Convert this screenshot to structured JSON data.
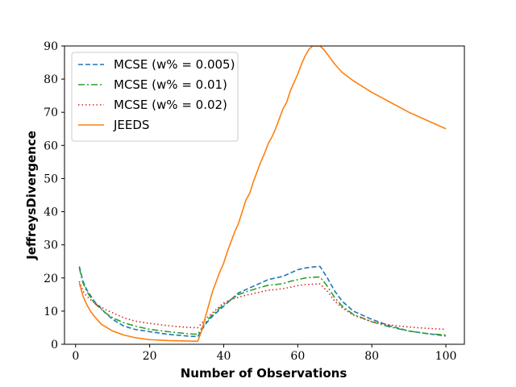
{
  "chart_data": {
    "type": "line",
    "title": "",
    "xlabel": "Number of Observations",
    "ylabel": "JeffreysDivergence",
    "xlim": [
      -3,
      105
    ],
    "ylim": [
      0,
      90
    ],
    "xticks": [
      0,
      20,
      40,
      60,
      80,
      100
    ],
    "yticks": [
      0,
      10,
      20,
      30,
      40,
      50,
      60,
      70,
      80,
      90
    ],
    "grid": false,
    "legend_position": "top-left",
    "series": [
      {
        "name": "MCSE (w% = 0.005)",
        "color": "#1f77b4",
        "style": "dashed",
        "x": [
          1,
          2,
          3,
          5,
          8,
          10,
          13,
          16,
          20,
          25,
          30,
          33,
          35,
          37,
          40,
          42,
          44,
          46,
          48,
          50,
          52,
          54,
          56,
          58,
          60,
          62,
          64,
          66,
          68,
          70,
          72,
          75,
          80,
          85,
          90,
          95,
          100
        ],
        "y": [
          23.5,
          19,
          16.5,
          13,
          9.5,
          7.5,
          5.5,
          4.5,
          3.8,
          3.0,
          2.5,
          2.3,
          6,
          8.5,
          11.5,
          13.5,
          15.5,
          16.5,
          17.5,
          18.5,
          19.5,
          20,
          20.5,
          21.5,
          22.5,
          23,
          23.3,
          23.5,
          20,
          16,
          13,
          10,
          7.5,
          5.5,
          4,
          3.2,
          2.5
        ]
      },
      {
        "name": "MCSE (w% = 0.01)",
        "color": "#2ca02c",
        "style": "dashdot",
        "x": [
          1,
          2,
          3,
          5,
          8,
          10,
          13,
          16,
          20,
          25,
          30,
          33,
          35,
          37,
          40,
          42,
          44,
          46,
          48,
          50,
          52,
          54,
          56,
          58,
          60,
          62,
          64,
          66,
          68,
          70,
          72,
          75,
          80,
          85,
          90,
          95,
          100
        ],
        "y": [
          23,
          18.5,
          16,
          12.5,
          9.5,
          8,
          6.5,
          5.5,
          4.5,
          3.8,
          3.2,
          3,
          6.5,
          9,
          12,
          13.5,
          15,
          15.8,
          16.5,
          17.2,
          17.8,
          18,
          18.3,
          19,
          19.5,
          20,
          20.2,
          20.3,
          17.5,
          14,
          11.5,
          9,
          6.8,
          5.2,
          4,
          3.2,
          2.8
        ]
      },
      {
        "name": "MCSE (w% = 0.02)",
        "color": "#d62728",
        "style": "dotted",
        "x": [
          1,
          2,
          3,
          5,
          8,
          10,
          13,
          16,
          20,
          25,
          30,
          33,
          35,
          37,
          40,
          42,
          44,
          46,
          48,
          50,
          52,
          54,
          56,
          58,
          60,
          62,
          64,
          66,
          68,
          70,
          72,
          75,
          80,
          85,
          90,
          95,
          100
        ],
        "y": [
          19,
          16,
          14.5,
          12.5,
          10.5,
          9.5,
          8,
          7,
          6.3,
          5.6,
          5.1,
          5,
          7.5,
          9.5,
          12.5,
          13.5,
          14.2,
          14.8,
          15.3,
          15.8,
          16.3,
          16.5,
          16.8,
          17.2,
          17.7,
          18,
          18.1,
          18.2,
          16,
          13,
          11,
          8.8,
          6.8,
          5.8,
          5.2,
          4.8,
          4.5
        ]
      },
      {
        "name": "JEEDS",
        "color": "#ff7f0e",
        "style": "solid",
        "x": [
          1,
          2,
          3,
          4,
          5,
          7,
          10,
          13,
          16,
          20,
          25,
          30,
          33,
          34,
          35,
          36,
          37,
          38,
          39,
          40,
          41,
          42,
          43,
          44,
          45,
          46,
          47,
          48,
          49,
          50,
          51,
          52,
          53,
          54,
          55,
          56,
          57,
          58,
          59,
          60,
          61,
          62,
          63,
          64,
          65,
          66,
          67,
          68,
          69,
          70,
          72,
          75,
          80,
          85,
          90,
          95,
          100
        ],
        "y": [
          18.5,
          14.5,
          12,
          10,
          8.5,
          6,
          4,
          2.8,
          2,
          1.4,
          1.1,
          1.0,
          0.9,
          4,
          8,
          12,
          16,
          19,
          22,
          24.5,
          28,
          31,
          34,
          36.5,
          40,
          43.5,
          45.5,
          49,
          52,
          55,
          57.5,
          60.5,
          62.5,
          65,
          68,
          71,
          73,
          76.5,
          79,
          81.5,
          84.5,
          87,
          89,
          90,
          90,
          90,
          89,
          87.5,
          86,
          84.5,
          82,
          79.5,
          76,
          73,
          70,
          67.5,
          65
        ]
      }
    ]
  }
}
